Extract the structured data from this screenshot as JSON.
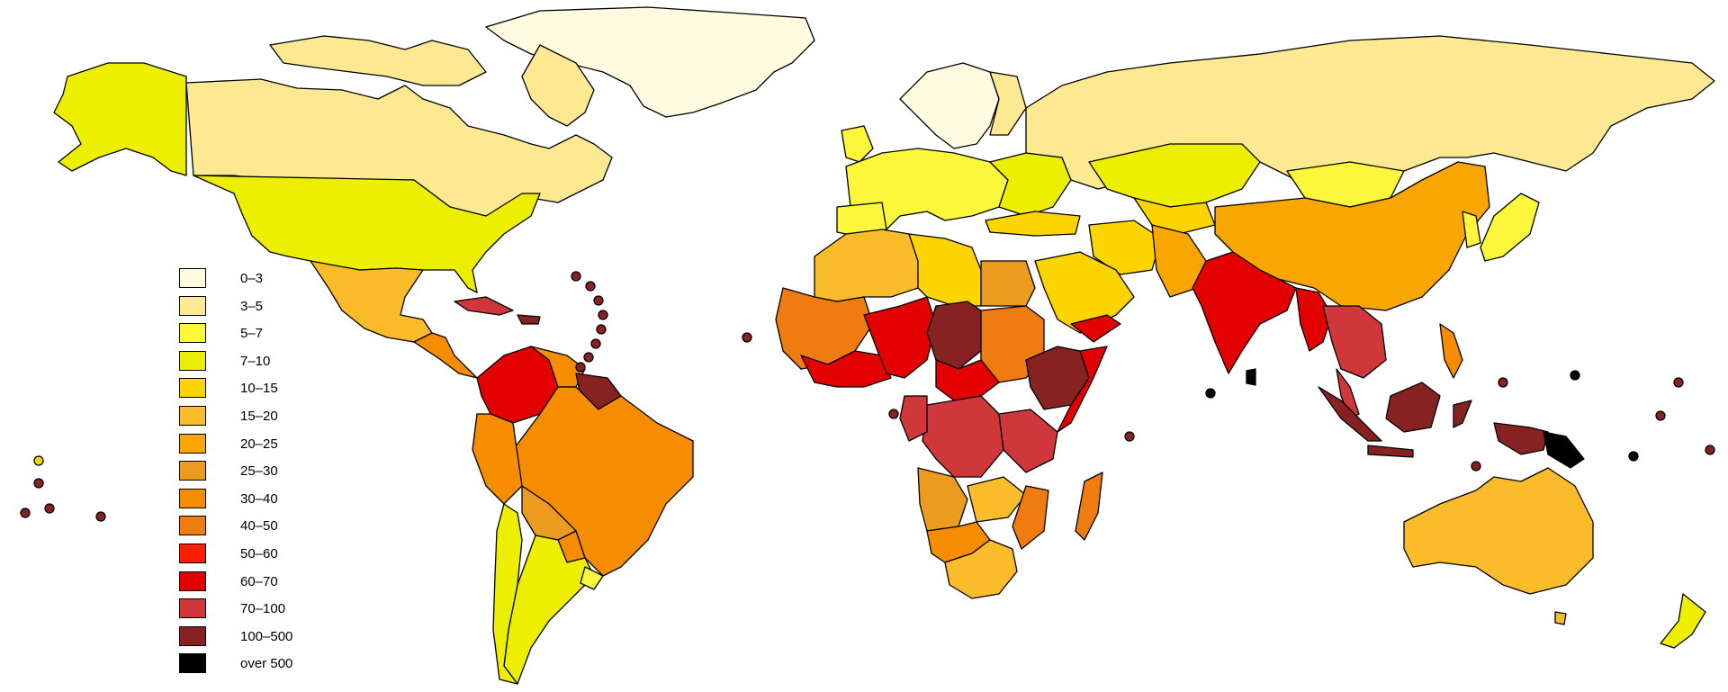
{
  "legend": {
    "items": [
      {
        "label": "0–3",
        "color": "#fffbe0"
      },
      {
        "label": "3–5",
        "color": "#fde992"
      },
      {
        "label": "5–7",
        "color": "#fcf73a"
      },
      {
        "label": "7–10",
        "color": "#edef00"
      },
      {
        "label": "10–15",
        "color": "#fcd500"
      },
      {
        "label": "15–20",
        "color": "#fbbc2b"
      },
      {
        "label": "20–25",
        "color": "#f9a600"
      },
      {
        "label": "25–30",
        "color": "#eb9c1e"
      },
      {
        "label": "30–40",
        "color": "#f68c00"
      },
      {
        "label": "40–50",
        "color": "#ee7c11"
      },
      {
        "label": "50–60",
        "color": "#fc1e00"
      },
      {
        "label": "60–70",
        "color": "#e30000"
      },
      {
        "label": "70–100",
        "color": "#cf373b"
      },
      {
        "label": "100–500",
        "color": "#862222"
      },
      {
        "label": "over 500",
        "color": "#000000"
      }
    ]
  }
}
